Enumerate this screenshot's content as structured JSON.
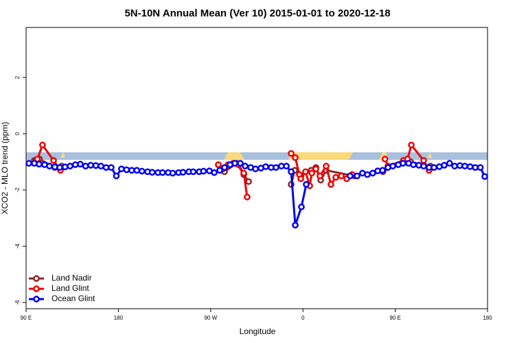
{
  "chart_data": {
    "type": "line",
    "title": "5N-10N Annual Mean (Ver 10)   2015-01-01 to 2020-12-18",
    "x_label": "Longitude",
    "y_label": "XCO2 - MLO trend (ppm)",
    "xlim": [
      90,
      540
    ],
    "ylim": [
      -6.22,
      3.78
    ],
    "xticks": [
      {
        "value": 90,
        "label": "90 E"
      },
      180,
      {
        "value": 270,
        "label": "90 W"
      },
      {
        "value": 360,
        "label": "0"
      },
      {
        "value": 450,
        "label": "90 E"
      },
      {
        "value": 540,
        "label": "180"
      }
    ],
    "yticks": [
      -6,
      -4,
      -2,
      0,
      2
    ],
    "legend": "bottom-left",
    "series": [
      {
        "name": "Land Nadir",
        "color": "#8b2525",
        "x": [
          98,
          103,
          118,
          124.8,
          null,
          277.5,
          283.5,
          295.5,
          302.3,
          307,
          null,
          348.5,
          352,
          358,
          368,
          372.6,
          377.3,
          382.6,
          410,
          null,
          438,
          458,
          465,
          484.3
        ],
        "values": [
          -0.95,
          -0.9,
          -1.2,
          -1.15,
          null,
          -1.1,
          -1.35,
          -1.05,
          -1.45,
          -1.7,
          null,
          -1.8,
          -1.3,
          -1.5,
          -1.3,
          -1.2,
          -1.65,
          -1.3,
          -1.5,
          null,
          -1.35,
          -0.95,
          -1.0,
          -1.15
        ]
      },
      {
        "name": "Land Glint",
        "color": "#ee0000",
        "x": [
          98,
          101,
          106,
          116.8,
          123.5,
          null,
          277.5,
          282,
          287,
          292,
          297,
          302.3,
          305.6,
          null,
          348.5,
          352.5,
          356.5,
          357.9,
          362.5,
          366.6,
          368.6,
          372.6,
          376.6,
          382.6,
          387.3,
          392,
          397.4,
          402.7,
          408,
          null,
          440,
          442.9,
          458,
          462,
          465.7,
          477.7,
          483
        ],
        "values": [
          -1.0,
          -0.9,
          -0.4,
          -0.95,
          -1.3,
          null,
          -1.1,
          -1.25,
          -1.1,
          -1.05,
          -1.1,
          -1.4,
          -2.25,
          null,
          -0.7,
          -0.85,
          -1.45,
          -1.6,
          -1.35,
          -1.85,
          -1.4,
          -1.25,
          -1.5,
          -1.15,
          -1.8,
          -1.55,
          -1.5,
          -1.6,
          -1.45,
          null,
          -0.9,
          -1.15,
          -0.95,
          -0.9,
          -0.4,
          -0.95,
          -1.3
        ]
      },
      {
        "name": "Ocean Glint",
        "color": "#0000ee",
        "x": [
          92.7,
          98,
          102.7,
          108,
          112.8,
          118,
          122.8,
          128,
          132.9,
          138,
          142.9,
          148,
          153,
          158,
          163,
          168,
          173,
          178,
          183,
          188,
          193,
          198,
          203,
          208.5,
          213,
          218.6,
          223,
          228.6,
          233,
          238.7,
          243,
          248.7,
          253,
          258.8,
          263,
          268.8,
          273.5,
          278.8,
          283.5,
          288.9,
          293.6,
          298.9,
          303.6,
          309,
          313.7,
          319,
          323.7,
          329,
          333.7,
          339,
          343.8,
          348.5,
          352.5,
          358.5,
          363.2,
          null,
          406,
          412.8,
          418,
          422.8,
          428,
          432.9,
          437.6,
          442.9,
          447.6,
          453,
          457.6,
          463,
          467.7,
          473,
          477.7,
          483,
          487.8,
          493,
          497.8,
          503,
          507.9,
          513,
          517.9,
          523,
          528,
          533,
          537.3
        ],
        "values": [
          -1.05,
          -1.05,
          -1.08,
          -1.1,
          -1.15,
          -1.18,
          -1.2,
          -1.18,
          -1.15,
          -1.1,
          -1.08,
          -1.15,
          -1.12,
          -1.13,
          -1.15,
          -1.2,
          -1.2,
          -1.5,
          -1.25,
          -1.28,
          -1.3,
          -1.3,
          -1.33,
          -1.35,
          -1.37,
          -1.38,
          -1.38,
          -1.38,
          -1.4,
          -1.38,
          -1.37,
          -1.35,
          -1.35,
          -1.35,
          -1.33,
          -1.32,
          -1.38,
          -1.3,
          -1.2,
          -1.1,
          -1.05,
          -1.05,
          -1.15,
          -1.2,
          -1.25,
          -1.22,
          -1.17,
          -1.2,
          -1.2,
          -1.15,
          -1.15,
          -1.35,
          -3.25,
          -2.6,
          -1.8,
          null,
          -1.5,
          -1.5,
          -1.4,
          -1.45,
          -1.4,
          -1.32,
          -1.3,
          -1.2,
          -1.15,
          -1.1,
          -1.05,
          -1.05,
          -1.1,
          -1.12,
          -1.15,
          -1.2,
          -1.2,
          -1.17,
          -1.12,
          -1.05,
          -1.15,
          -1.13,
          -1.15,
          -1.17,
          -1.2,
          -1.2,
          -1.52
        ]
      }
    ]
  }
}
